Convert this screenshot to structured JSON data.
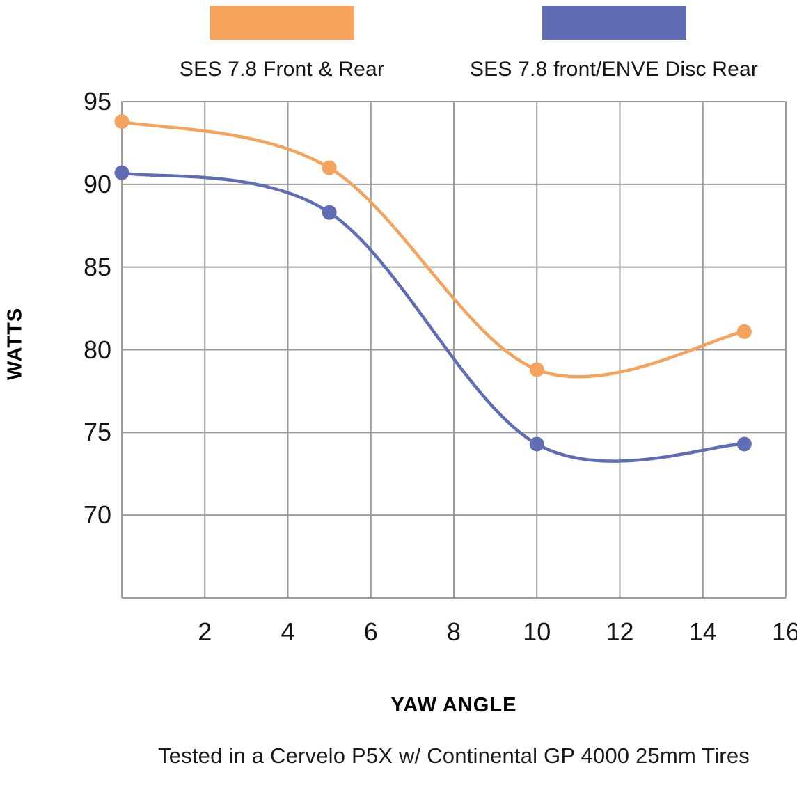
{
  "legend": [
    {
      "label": "SES 7.8 Front & Rear",
      "color": "#F5A35C"
    },
    {
      "label": "SES 7.8 front/ENVE Disc Rear",
      "color": "#5E6DB4"
    }
  ],
  "chart_data": {
    "type": "line",
    "x": [
      0,
      5,
      10,
      15
    ],
    "series": [
      {
        "name": "SES 7.8 Front & Rear",
        "color": "#F5A35C",
        "values": [
          93.8,
          91.0,
          78.8,
          81.1
        ]
      },
      {
        "name": "SES 7.8 front/ENVE Disc Rear",
        "color": "#5E6DB4",
        "values": [
          90.7,
          88.3,
          74.3,
          74.3
        ]
      }
    ],
    "xlabel": "YAW ANGLE",
    "ylabel": "WATTS",
    "xlim": [
      0,
      16
    ],
    "ylim": [
      65,
      95
    ],
    "x_ticks": [
      2,
      4,
      6,
      8,
      10,
      12,
      14,
      16
    ],
    "y_ticks": [
      95,
      90,
      85,
      80,
      75,
      70
    ],
    "grid": true,
    "grid_color": "#9B9B9E",
    "legend_position": "top",
    "smooth": true
  },
  "caption": "Tested in a Cervelo P5X w/ Continental GP 4000 25mm Tires"
}
